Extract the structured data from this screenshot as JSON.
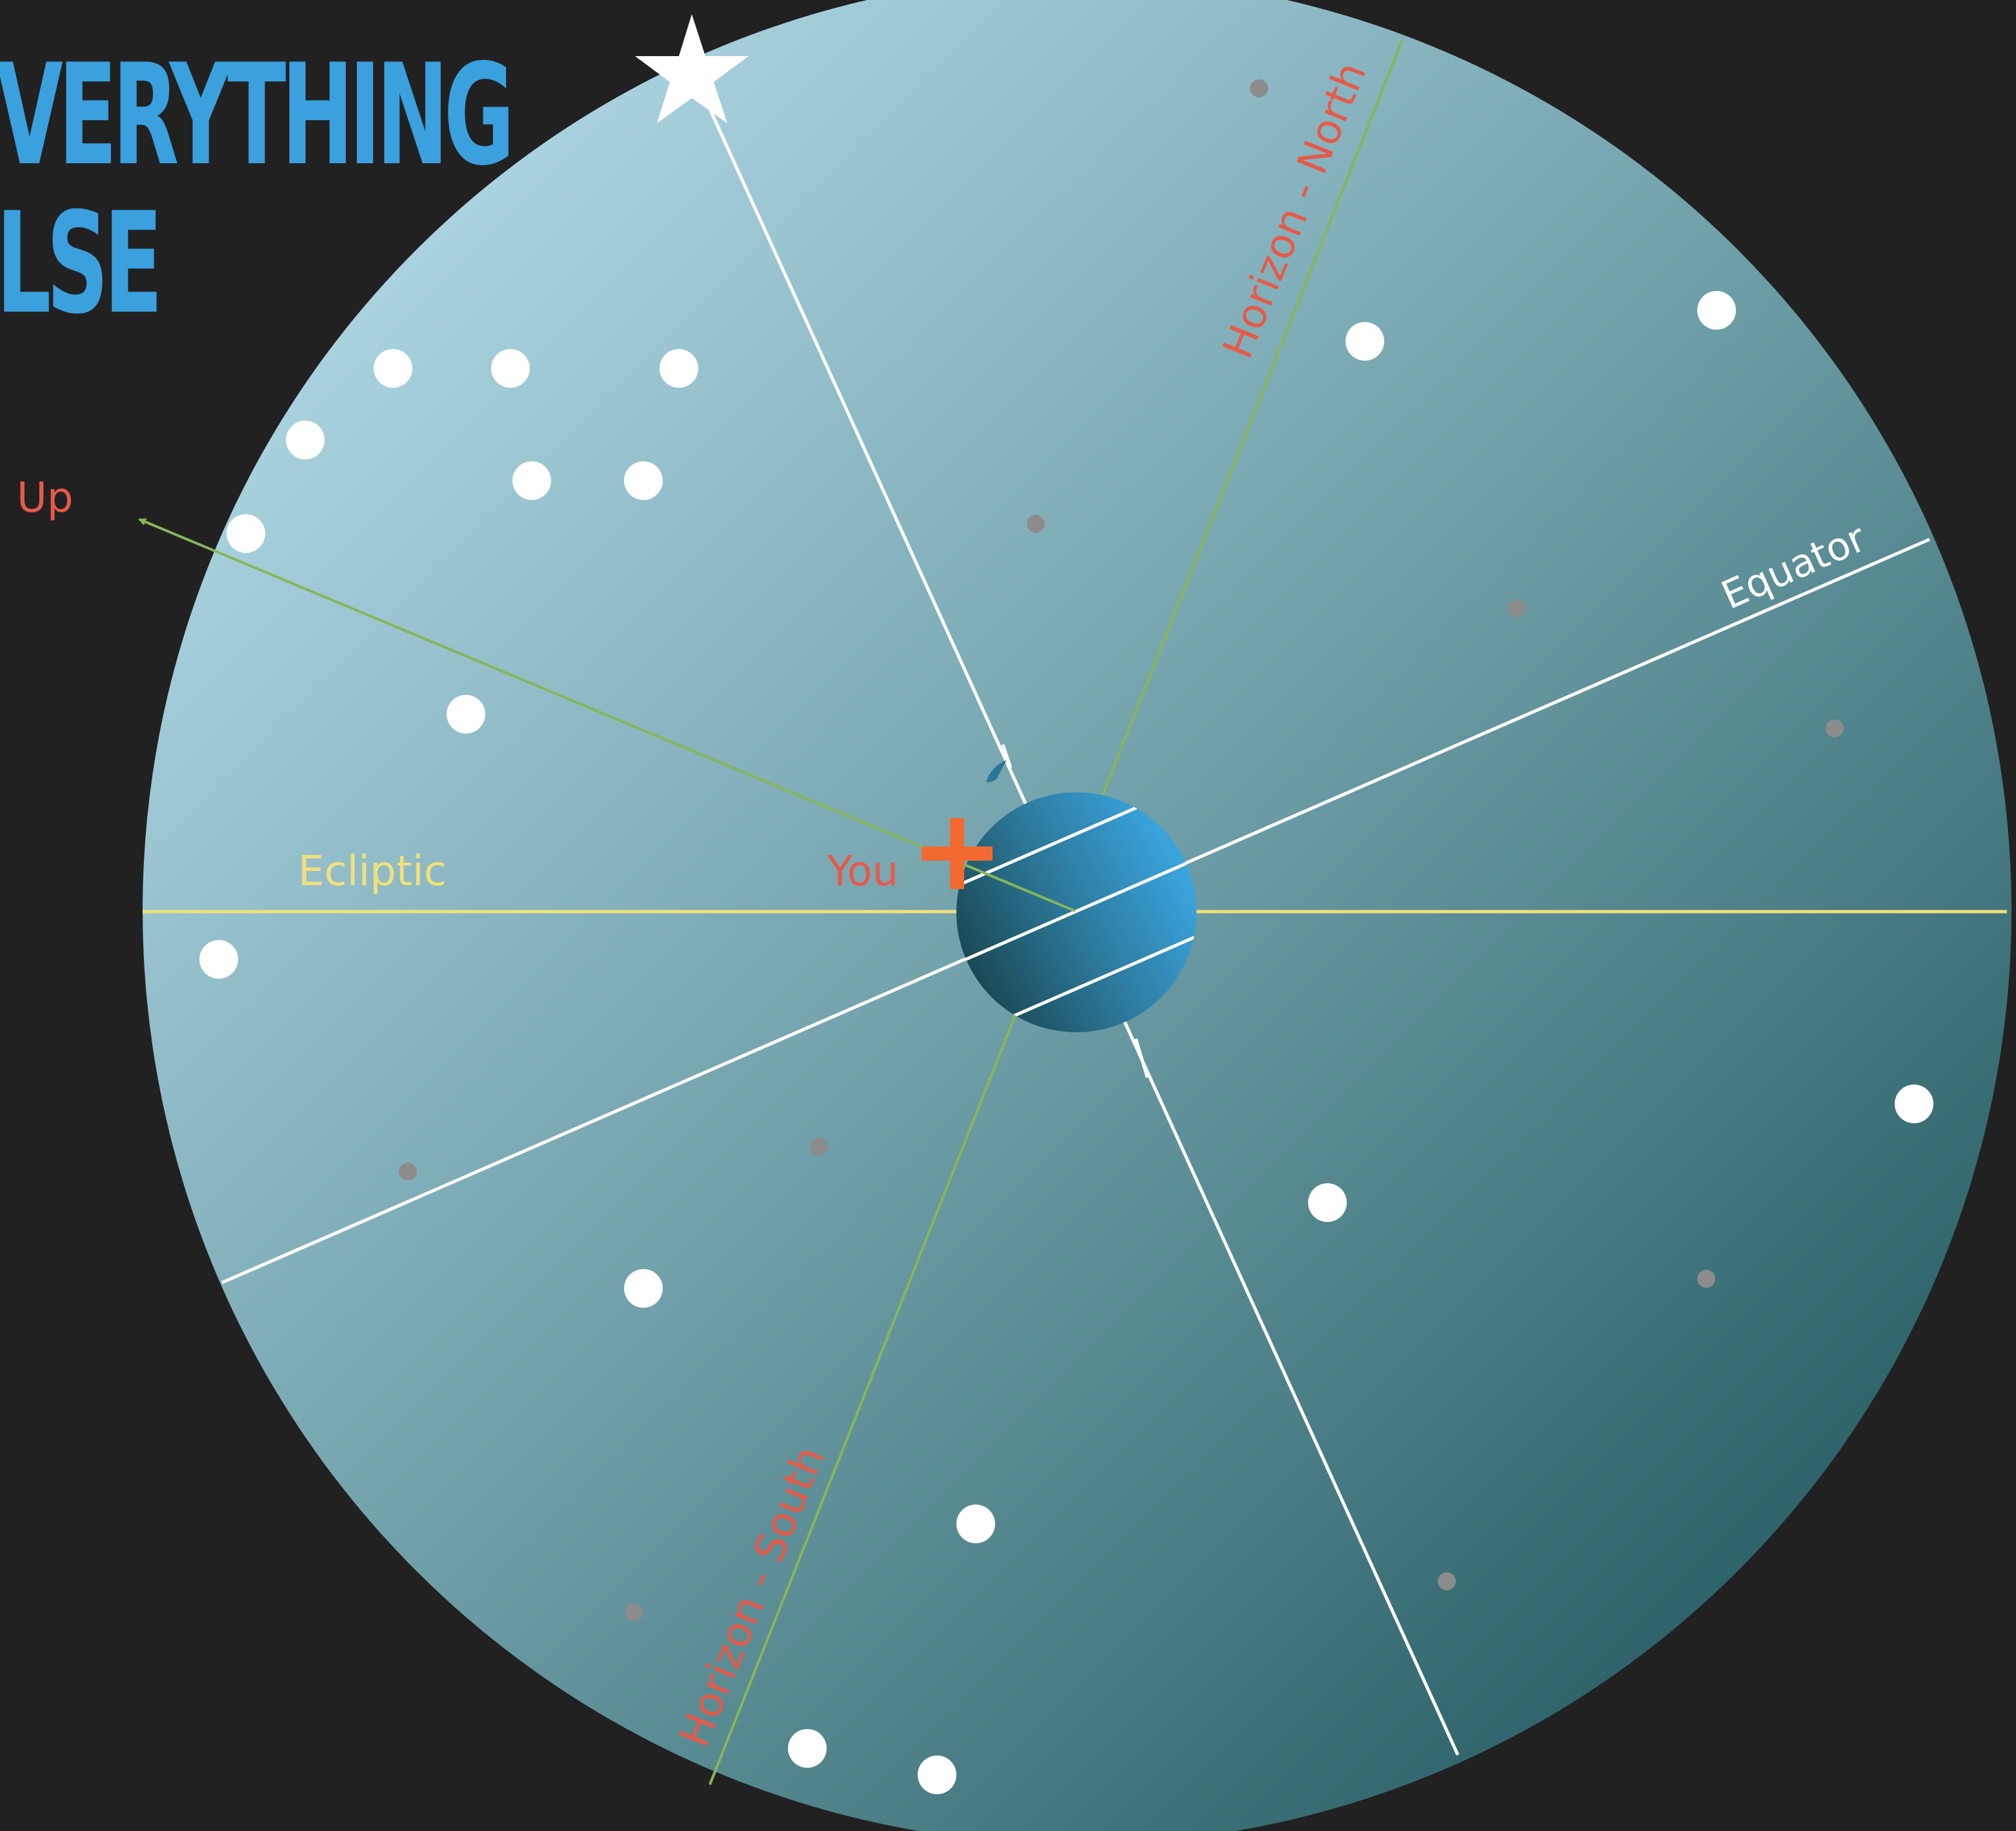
{
  "title": {
    "line1": "VERYTHING",
    "line2": "LSE"
  },
  "labels": {
    "up": "Up",
    "ecliptic": "Ecliptic",
    "you": "You",
    "equator": "Equator",
    "horizon_north": "Horizon - North",
    "horizon_south": "Horizon - South"
  },
  "colors": {
    "background": "#212121",
    "title": "#3aa0de",
    "sky_light": "#b5dcea",
    "sky_dark": "#22585f",
    "label_red": "#e65a4a",
    "ecliptic": "#f1e07c",
    "horizon_line": "#86b65a",
    "you_marker": "#f26a30",
    "earth_light": "#3aa3dc",
    "earth_dark": "#1b4a56"
  },
  "icons": {
    "pole_star": "star-icon",
    "you_marker": "plus-icon",
    "up_arrow": "arrow-icon"
  }
}
